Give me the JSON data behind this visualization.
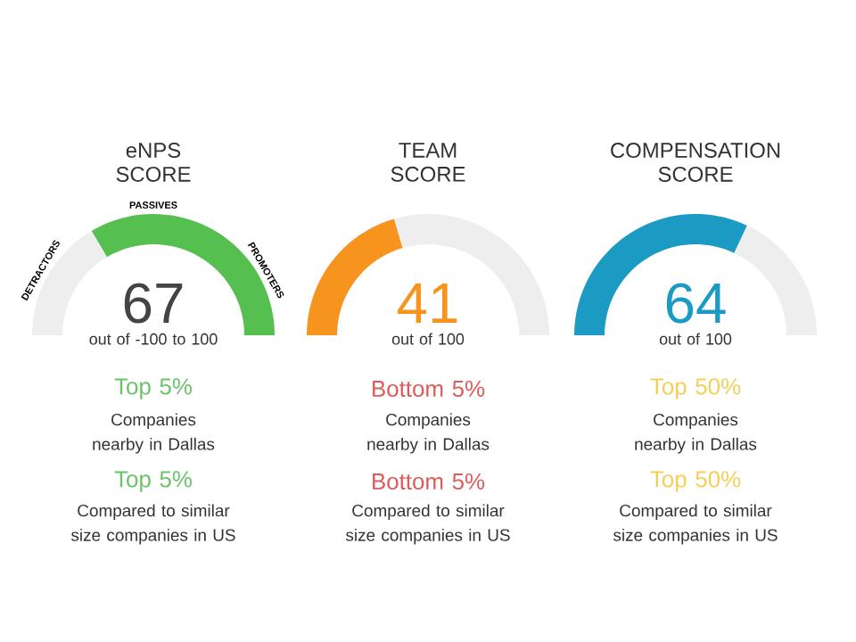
{
  "chart_data": [
    {
      "type": "donut",
      "title": "eNPS SCORE",
      "categories": [
        null,
        null
      ],
      "values": [
        33,
        67
      ],
      "colors": [
        "#eeeeee",
        "#55bf4f"
      ],
      "annotations": [
        "67",
        "out of -100 to 100",
        "Top 5%",
        "Companies nearby in Dallas",
        "Top 5%",
        "Compared to similar size companies in US",
        "DETRACTORS",
        "PASSIVES",
        "PROMOTERS"
      ]
    },
    {
      "type": "donut",
      "title": "TEAM SCORE",
      "categories": [
        null,
        null
      ],
      "values": [
        41,
        59
      ],
      "colors": [
        "#f7941d",
        "#eeeeee"
      ],
      "annotations": [
        "41",
        "out of 100",
        "Bottom 5%",
        "Companies nearby in Dallas",
        "Bottom 5%",
        "Compared to similar size companies in US"
      ]
    },
    {
      "type": "donut",
      "title": "COMPENSATION SCORE",
      "categories": [
        null,
        null
      ],
      "values": [
        64,
        36
      ],
      "colors": [
        "#1b9bc3",
        "#eeeeee"
      ],
      "annotations": [
        "64",
        "out of 100",
        "Top 50%",
        "Companies nearby in Dallas",
        "Top 50%",
        "Compared to similar size companies in US"
      ]
    }
  ]
}
